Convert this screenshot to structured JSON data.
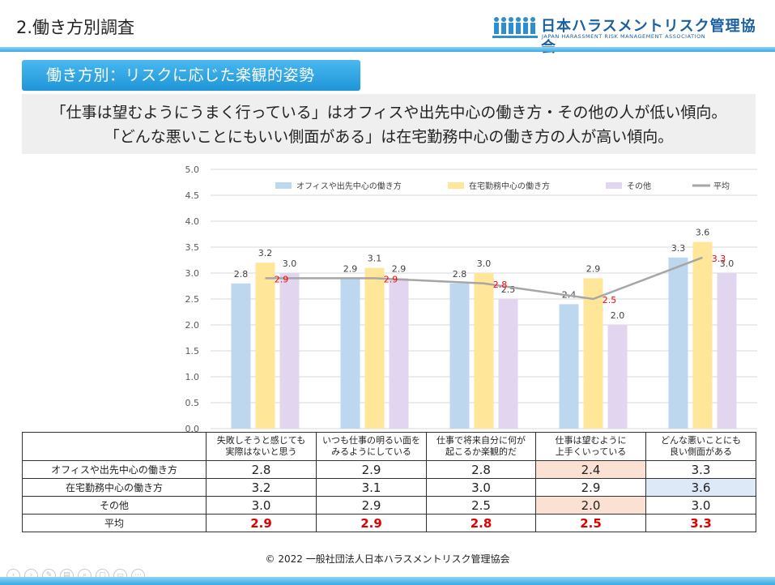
{
  "header": {
    "title": "2.働き方別調査",
    "logo_ja": "日本ハラスメントリスク管理協会",
    "logo_en": "JAPAN HARASSMENT RISK MANAGEMENT ASSOCIATION"
  },
  "section_label": "働き方別：リスクに応じた楽観的姿勢",
  "summary": {
    "line1": "「仕事は望むようにうまく行っている」はオフィスや出先中心の働き方・その他の人が低い傾向。",
    "line2": "「どんな悪いことにもいい側面がある」は在宅勤務中心の働き方の人が高い傾向。"
  },
  "colors": {
    "office": "#bdd7ee",
    "home": "#ffe699",
    "other": "#e2d5f0",
    "average": "#a6a6a6",
    "avg_label": "#ff0000",
    "accent": "#2aa3e3"
  },
  "chart_data": {
    "type": "bar",
    "categories": [
      "失敗しそうと感じても実際はないと思う",
      "いつも仕事の明るい面をみるようにしている",
      "仕事で将来自分に何が起こるか楽観的だ",
      "仕事は望むように上手くいっている",
      "どんな悪いことにも良い側面がある"
    ],
    "series": [
      {
        "name": "オフィスや出先中心の働き方",
        "values": [
          2.8,
          2.9,
          2.8,
          2.4,
          3.3
        ],
        "labels": [
          "2.8",
          "2.9",
          "2.8",
          "2.4",
          "3.3"
        ]
      },
      {
        "name": "在宅勤務中心の働き方",
        "values": [
          3.2,
          3.1,
          3.0,
          2.9,
          3.6
        ],
        "labels": [
          "3.2",
          "3.1",
          "3.0",
          "2.9",
          "3.6"
        ]
      },
      {
        "name": "その他",
        "values": [
          3.0,
          2.9,
          2.5,
          2.0,
          3.0
        ],
        "labels": [
          "3.0",
          "2.9",
          "2.5",
          "2.0",
          "3.0"
        ]
      }
    ],
    "line_series": {
      "name": "平均",
      "values": [
        2.9,
        2.9,
        2.8,
        2.5,
        3.3
      ],
      "labels": [
        "2.9",
        "2.9",
        "2.8",
        "2.5",
        "3.3"
      ]
    },
    "ylim": [
      0,
      5
    ],
    "yticks": [
      "0.0",
      "0.5",
      "1.0",
      "1.5",
      "2.0",
      "2.5",
      "3.0",
      "3.5",
      "4.0",
      "4.5",
      "5.0"
    ],
    "grid": true,
    "legend_position": "top"
  },
  "table": {
    "header": [
      [
        "失敗しそうと感じても",
        "実際はないと思う"
      ],
      [
        "いつも仕事の明るい面を",
        "みるようにしている"
      ],
      [
        "仕事で将来自分に何が",
        "起こるか楽観的だ"
      ],
      [
        "仕事は望むように",
        "上手くいっている"
      ],
      [
        "どんな悪いことにも",
        "良い側面がある"
      ]
    ],
    "rows": [
      {
        "label": "オフィスや出先中心の働き方",
        "values": [
          "2.8",
          "2.9",
          "2.8",
          "2.4",
          "3.3"
        ]
      },
      {
        "label": "在宅勤務中心の働き方",
        "values": [
          "3.2",
          "3.1",
          "3.0",
          "2.9",
          "3.6"
        ]
      },
      {
        "label": "その他",
        "values": [
          "3.0",
          "2.9",
          "2.5",
          "2.0",
          "3.0"
        ]
      },
      {
        "label": "平均",
        "values": [
          "2.9",
          "2.9",
          "2.8",
          "2.5",
          "3.3"
        ]
      }
    ]
  },
  "footer": {
    "copyright": "© 2022 一般社団法人日本ハラスメントリスク管理協会"
  }
}
